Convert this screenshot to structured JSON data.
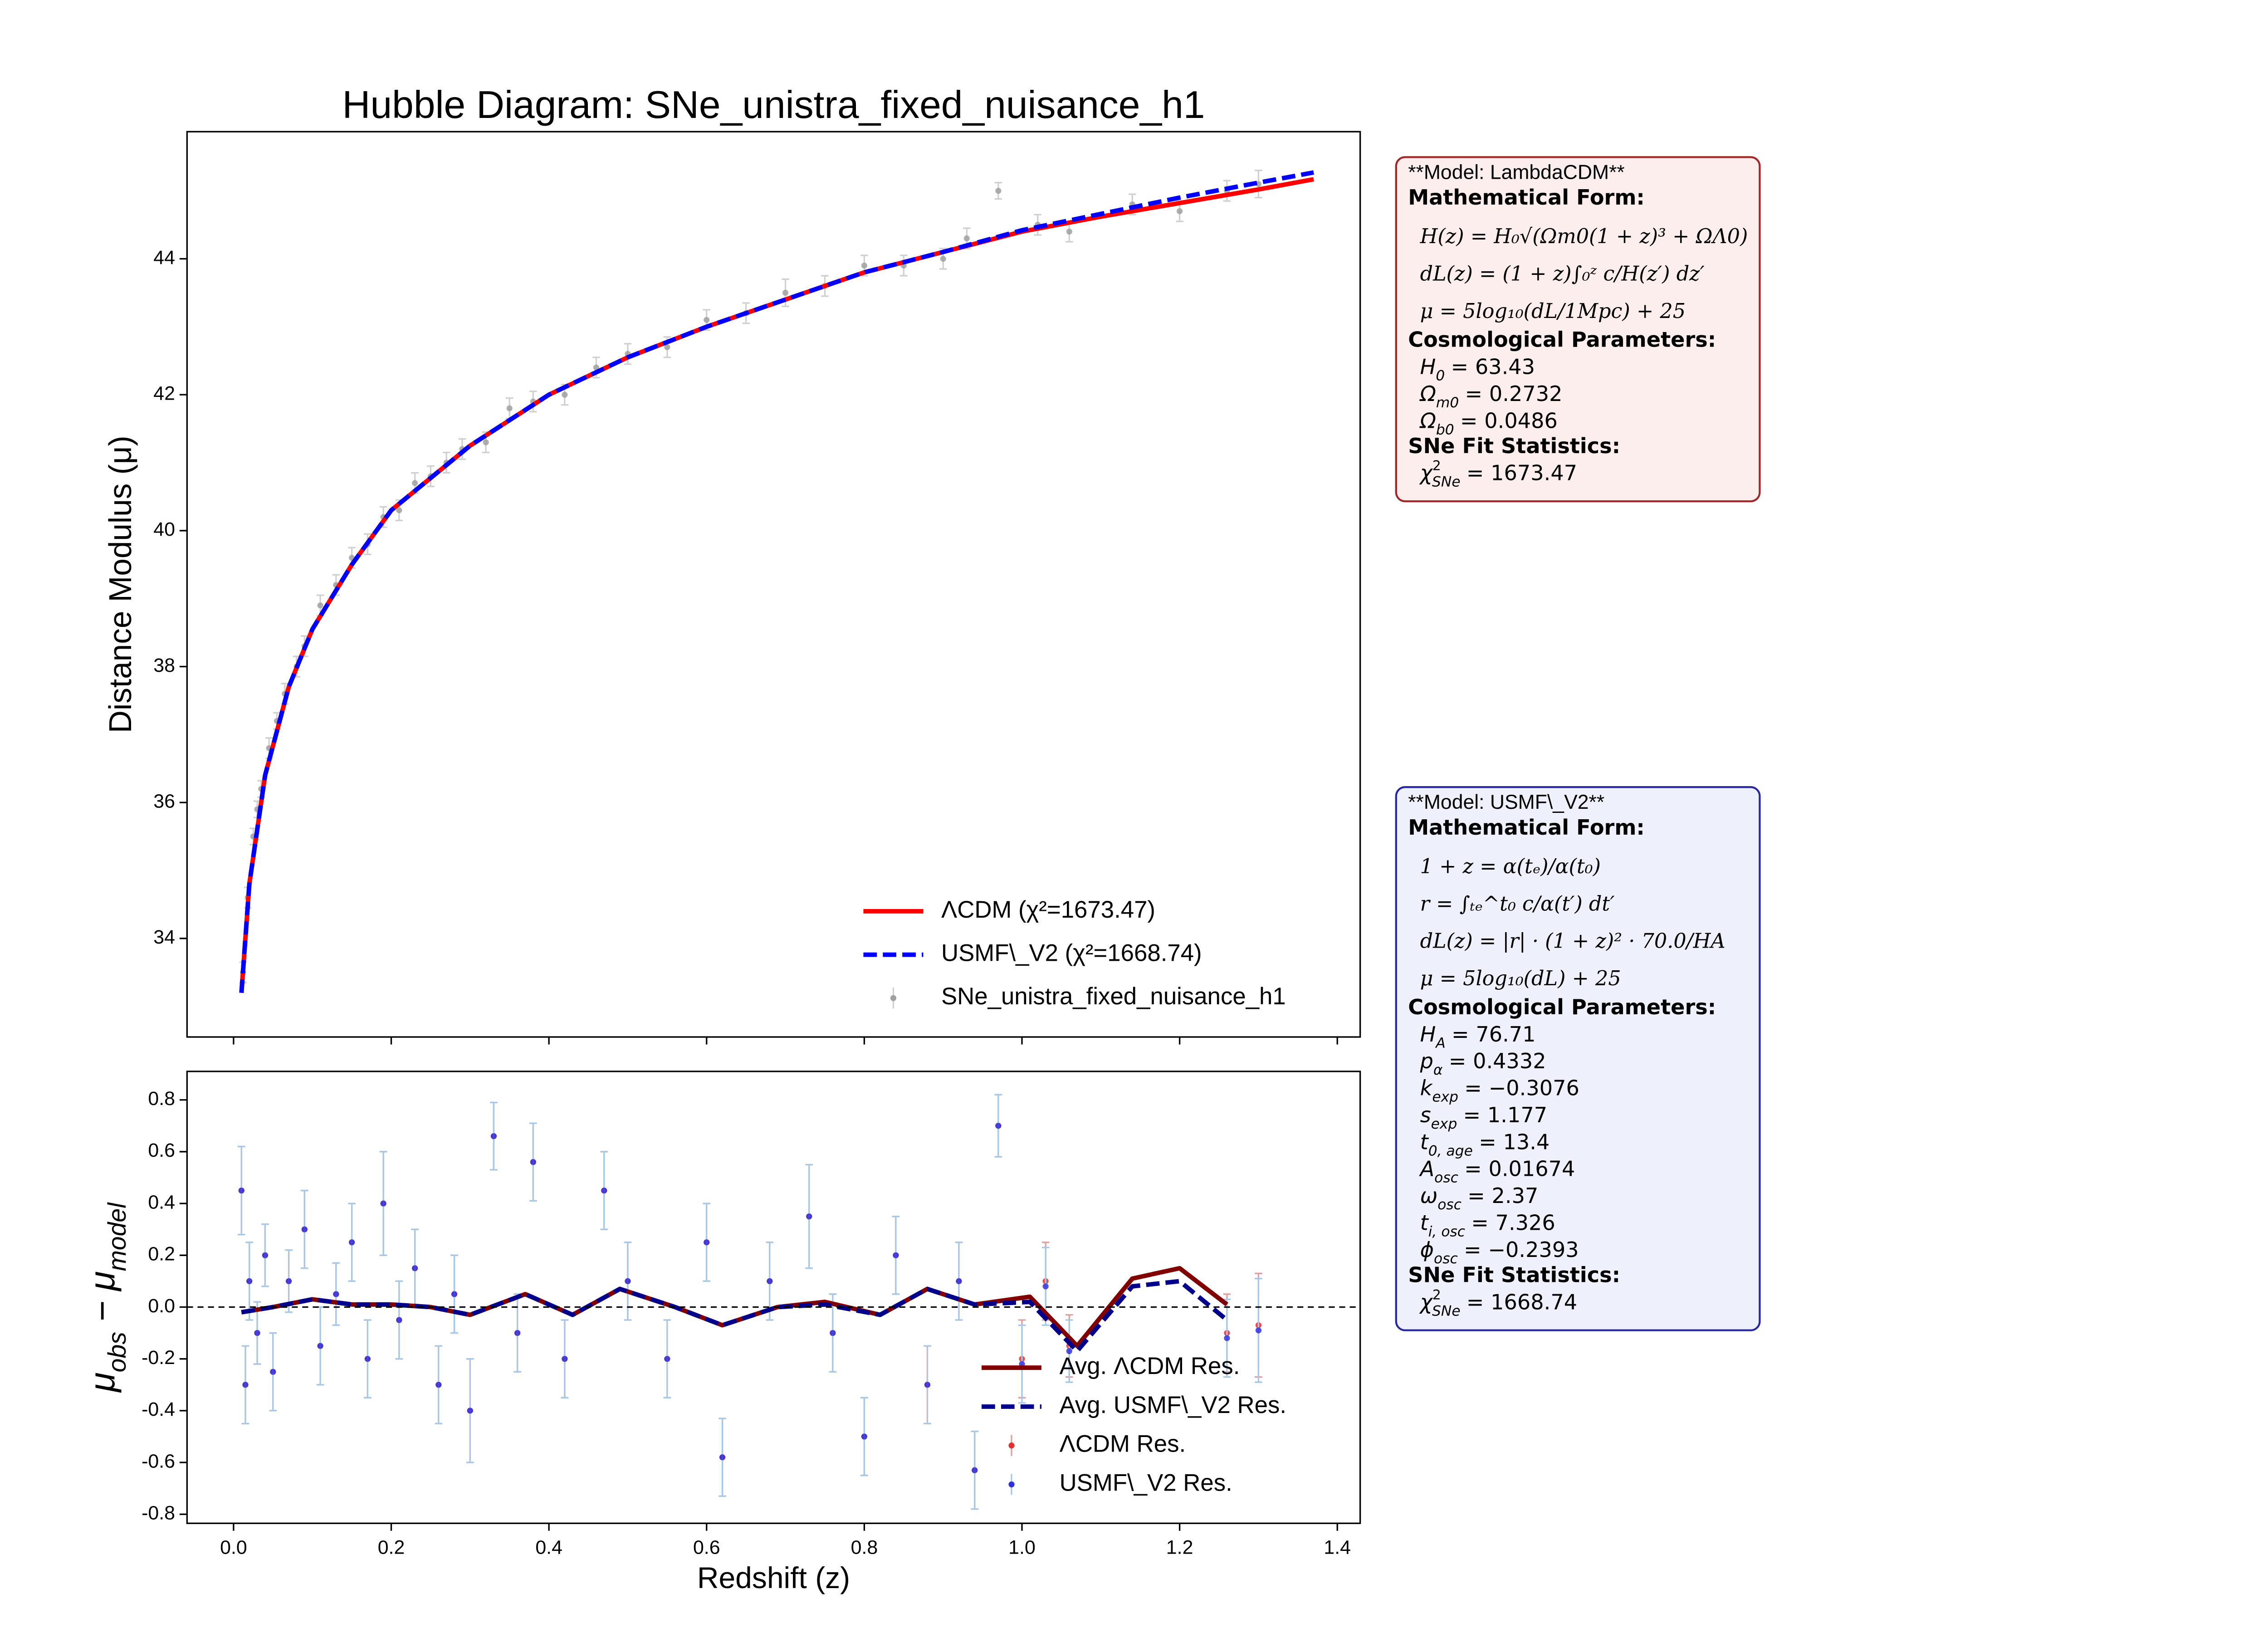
{
  "chart_data": [
    {
      "type": "line",
      "title": "Hubble Diagram: SNe_unistra_fixed_nuisance_h1",
      "ylabel": "Distance Modulus (μ)",
      "xlim": [
        -0.059,
        1.429
      ],
      "ylim": [
        32.55,
        45.87
      ],
      "xticks": [
        0,
        0.2,
        0.4,
        0.6,
        0.8,
        1,
        1.2,
        1.4
      ],
      "xtick_labels": false,
      "yticks": [
        34,
        36,
        38,
        40,
        42,
        44
      ],
      "legend": "lower right",
      "series": [
        {
          "name": "ΛCDM (χ²=1673.47)",
          "color": "#ff0000",
          "style": "solid",
          "x": [
            0.01,
            0.02,
            0.04,
            0.07,
            0.1,
            0.15,
            0.2,
            0.3,
            0.4,
            0.5,
            0.6,
            0.7,
            0.8,
            0.9,
            1.0,
            1.1,
            1.2,
            1.3,
            1.37
          ],
          "values": [
            33.2,
            34.8,
            36.4,
            37.7,
            38.55,
            39.5,
            40.3,
            41.25,
            42.0,
            42.55,
            43.0,
            43.4,
            43.8,
            44.1,
            44.4,
            44.62,
            44.82,
            45.02,
            45.17
          ]
        },
        {
          "name": "USMF\\_V2 (χ²=1668.74)",
          "color": "#0000ff",
          "style": "dashed",
          "x": [
            0.01,
            0.02,
            0.04,
            0.07,
            0.1,
            0.15,
            0.2,
            0.3,
            0.4,
            0.5,
            0.6,
            0.7,
            0.8,
            0.9,
            1.0,
            1.1,
            1.2,
            1.3,
            1.37
          ],
          "values": [
            33.2,
            34.8,
            36.4,
            37.7,
            38.55,
            39.5,
            40.3,
            41.25,
            42.0,
            42.55,
            43.0,
            43.4,
            43.8,
            44.1,
            44.42,
            44.66,
            44.9,
            45.12,
            45.27
          ]
        },
        {
          "name": "SNe_unistra_fixed_nuisance_h1",
          "color": "#a0a0a0",
          "error_color": "#d0d0d0",
          "style": "errorbar",
          "x": [
            0.012,
            0.018,
            0.025,
            0.03,
            0.035,
            0.045,
            0.055,
            0.065,
            0.08,
            0.09,
            0.11,
            0.13,
            0.15,
            0.17,
            0.19,
            0.21,
            0.23,
            0.25,
            0.27,
            0.29,
            0.32,
            0.35,
            0.38,
            0.42,
            0.46,
            0.5,
            0.55,
            0.6,
            0.65,
            0.7,
            0.75,
            0.8,
            0.85,
            0.9,
            0.93,
            0.97,
            1.02,
            1.06,
            1.14,
            1.2,
            1.26,
            1.3
          ],
          "values": [
            33.5,
            34.6,
            35.5,
            35.9,
            36.2,
            36.8,
            37.2,
            37.6,
            38.0,
            38.3,
            38.9,
            39.2,
            39.6,
            39.8,
            40.2,
            40.3,
            40.7,
            40.8,
            41.0,
            41.2,
            41.3,
            41.8,
            41.9,
            42.0,
            42.4,
            42.6,
            42.7,
            43.1,
            43.2,
            43.5,
            43.6,
            43.9,
            43.9,
            44.0,
            44.3,
            45.0,
            44.5,
            44.4,
            44.8,
            44.7,
            45.0,
            45.1
          ],
          "errors": [
            0.15,
            0.15,
            0.12,
            0.12,
            0.12,
            0.15,
            0.12,
            0.15,
            0.15,
            0.15,
            0.15,
            0.15,
            0.15,
            0.15,
            0.15,
            0.15,
            0.15,
            0.15,
            0.15,
            0.15,
            0.15,
            0.15,
            0.15,
            0.15,
            0.15,
            0.15,
            0.15,
            0.15,
            0.15,
            0.2,
            0.15,
            0.15,
            0.15,
            0.15,
            0.15,
            0.12,
            0.15,
            0.15,
            0.15,
            0.15,
            0.15,
            0.2
          ]
        }
      ]
    },
    {
      "type": "line",
      "xlabel": "Redshift (z)",
      "ylabel": [
        {
          "text": "μ",
          "sub": "obs"
        },
        {
          "text": " − μ",
          "sub": "model"
        }
      ],
      "xlim": [
        -0.059,
        1.429
      ],
      "ylim": [
        -0.835,
        0.91
      ],
      "xticks": [
        {
          "value": 0,
          "label": "0.0"
        },
        0.2,
        0.4,
        0.6,
        0.8,
        {
          "value": 1,
          "label": "1.0"
        },
        1.2,
        1.4
      ],
      "xtick_labels": true,
      "yticks": [
        -0.8,
        -0.6,
        -0.4,
        -0.2,
        {
          "value": 0,
          "label": "0.0"
        },
        0.2,
        0.4,
        0.6,
        0.8
      ],
      "reference_line": 0,
      "legend": "lower right",
      "series": [
        {
          "name": "Avg. ΛCDM Res.",
          "color": "#800000",
          "style": "solid",
          "x": [
            0.01,
            0.05,
            0.1,
            0.15,
            0.2,
            0.25,
            0.3,
            0.37,
            0.43,
            0.49,
            0.56,
            0.62,
            0.69,
            0.75,
            0.82,
            0.88,
            0.94,
            1.01,
            1.07,
            1.14,
            1.2,
            1.26
          ],
          "values": [
            -0.02,
            0.0,
            0.03,
            0.01,
            0.01,
            0.0,
            -0.03,
            0.05,
            -0.03,
            0.07,
            0.0,
            -0.07,
            0.0,
            0.02,
            -0.03,
            0.07,
            0.01,
            0.04,
            -0.15,
            0.11,
            0.15,
            0.01
          ]
        },
        {
          "name": "Avg. USMF\\_V2 Res.",
          "color": "#00008b",
          "style": "dashed",
          "x": [
            0.01,
            0.05,
            0.1,
            0.15,
            0.2,
            0.25,
            0.3,
            0.37,
            0.43,
            0.49,
            0.56,
            0.62,
            0.69,
            0.75,
            0.82,
            0.88,
            0.94,
            1.01,
            1.07,
            1.14,
            1.2,
            1.26
          ],
          "values": [
            -0.02,
            0.0,
            0.03,
            0.01,
            0.01,
            0.0,
            -0.03,
            0.05,
            -0.03,
            0.07,
            0.0,
            -0.07,
            0.0,
            0.01,
            -0.03,
            0.07,
            0.01,
            0.02,
            -0.17,
            0.08,
            0.1,
            -0.05
          ]
        },
        {
          "name": "ΛCDM Res.",
          "color": "#e03030",
          "error_color": "#e0a0a0",
          "style": "errorbar",
          "x": [
            0.01,
            0.015,
            0.02,
            0.03,
            0.04,
            0.05,
            0.07,
            0.09,
            0.11,
            0.13,
            0.15,
            0.17,
            0.19,
            0.21,
            0.23,
            0.26,
            0.28,
            0.3,
            0.33,
            0.36,
            0.38,
            0.42,
            0.47,
            0.5,
            0.55,
            0.6,
            0.62,
            0.68,
            0.73,
            0.76,
            0.8,
            0.84,
            0.88,
            0.92,
            0.94,
            0.97,
            1.0,
            1.03,
            1.06,
            1.26,
            1.3
          ],
          "values": [
            0.45,
            -0.3,
            0.1,
            -0.1,
            0.2,
            -0.25,
            0.1,
            0.3,
            -0.15,
            0.05,
            0.25,
            -0.2,
            0.4,
            -0.05,
            0.15,
            -0.3,
            0.05,
            -0.4,
            0.66,
            -0.1,
            0.56,
            -0.2,
            0.45,
            0.1,
            -0.2,
            0.25,
            -0.58,
            0.1,
            0.35,
            -0.1,
            -0.5,
            0.2,
            -0.3,
            0.1,
            -0.63,
            0.7,
            -0.2,
            0.1,
            -0.15,
            -0.1,
            -0.07
          ],
          "errors": [
            0.17,
            0.15,
            0.15,
            0.12,
            0.12,
            0.15,
            0.12,
            0.15,
            0.15,
            0.12,
            0.15,
            0.15,
            0.2,
            0.15,
            0.15,
            0.15,
            0.15,
            0.2,
            0.13,
            0.15,
            0.15,
            0.15,
            0.15,
            0.15,
            0.15,
            0.15,
            0.15,
            0.15,
            0.2,
            0.15,
            0.15,
            0.15,
            0.15,
            0.15,
            0.15,
            0.12,
            0.15,
            0.15,
            0.12,
            0.15,
            0.2
          ]
        },
        {
          "name": "USMF\\_V2 Res.",
          "color": "#3030e0",
          "error_color": "#a8c8e8",
          "style": "errorbar",
          "x": [
            0.01,
            0.015,
            0.02,
            0.03,
            0.04,
            0.05,
            0.07,
            0.09,
            0.11,
            0.13,
            0.15,
            0.17,
            0.19,
            0.21,
            0.23,
            0.26,
            0.28,
            0.3,
            0.33,
            0.36,
            0.38,
            0.42,
            0.47,
            0.5,
            0.55,
            0.6,
            0.62,
            0.68,
            0.73,
            0.76,
            0.8,
            0.84,
            0.88,
            0.92,
            0.94,
            0.97,
            1.0,
            1.03,
            1.06,
            1.26,
            1.3
          ],
          "values": [
            0.45,
            -0.3,
            0.1,
            -0.1,
            0.2,
            -0.25,
            0.1,
            0.3,
            -0.15,
            0.05,
            0.25,
            -0.2,
            0.4,
            -0.05,
            0.15,
            -0.3,
            0.05,
            -0.4,
            0.66,
            -0.1,
            0.56,
            -0.2,
            0.45,
            0.1,
            -0.2,
            0.25,
            -0.58,
            0.1,
            0.35,
            -0.1,
            -0.5,
            0.2,
            -0.3,
            0.1,
            -0.63,
            0.7,
            -0.22,
            0.08,
            -0.17,
            -0.12,
            -0.09
          ],
          "errors": [
            0.17,
            0.15,
            0.15,
            0.12,
            0.12,
            0.15,
            0.12,
            0.15,
            0.15,
            0.12,
            0.15,
            0.15,
            0.2,
            0.15,
            0.15,
            0.15,
            0.15,
            0.2,
            0.13,
            0.15,
            0.15,
            0.15,
            0.15,
            0.15,
            0.15,
            0.15,
            0.15,
            0.15,
            0.2,
            0.15,
            0.15,
            0.15,
            0.15,
            0.15,
            0.15,
            0.12,
            0.15,
            0.15,
            0.12,
            0.15,
            0.2
          ]
        }
      ]
    }
  ],
  "model_boxes": [
    {
      "title": "**Model: LambdaCDM**",
      "fill": "#fdeeee",
      "border": "#a02828",
      "sections": [
        {
          "heading": "Mathematical Form:",
          "formulas": [
            "H(z) = H₀√(Ωm0(1 + z)³ + ΩΛ0)",
            "dL(z) = (1 + z)∫₀ᶻ c/H(z′) dz′",
            "μ = 5log₁₀(dL/1Mpc) + 25"
          ]
        },
        {
          "heading": "Cosmological Parameters:",
          "params": [
            {
              "symbol": "H",
              "sub": "0",
              "value": "= 63.43"
            },
            {
              "symbol": "Ω",
              "sub": "m0",
              "value": "= 0.2732"
            },
            {
              "symbol": "Ω",
              "sub": "b0",
              "value": "= 0.0486"
            }
          ]
        },
        {
          "heading": "SNe Fit Statistics:",
          "params": [
            {
              "symbol": "χ",
              "sup": "2",
              "sub": "SNe",
              "value": "= 1673.47"
            }
          ]
        }
      ]
    },
    {
      "title": "**Model: USMF\\_V2**",
      "fill": "#eef0fc",
      "border": "#2828a0",
      "sections": [
        {
          "heading": "Mathematical Form:",
          "formulas": [
            "1 + z = α(tₑ)/α(t₀)",
            "r = ∫ₜₑ^t₀ c/α(t′) dt′",
            "dL(z) = |r| · (1 + z)² · 70.0/HA",
            "μ = 5log₁₀(dL) + 25"
          ]
        },
        {
          "heading": "Cosmological Parameters:",
          "params": [
            {
              "symbol": "H",
              "sub": "A",
              "value": "= 76.71"
            },
            {
              "symbol": "p",
              "sub": "α",
              "value": "= 0.4332"
            },
            {
              "symbol": "k",
              "sub": "exp",
              "value": "= −0.3076"
            },
            {
              "symbol": "s",
              "sub": "exp",
              "value": "= 1.177"
            },
            {
              "symbol": "t",
              "sub": "0, age",
              "value": "= 13.4"
            },
            {
              "symbol": "A",
              "sub": "osc",
              "value": "= 0.01674"
            },
            {
              "symbol": "ω",
              "sub": "osc",
              "value": "= 2.37"
            },
            {
              "symbol": "t",
              "sub": "i, osc",
              "value": "= 7.326"
            },
            {
              "symbol": "ϕ",
              "sub": "osc",
              "value": "= −0.2393"
            }
          ]
        },
        {
          "heading": "SNe Fit Statistics:",
          "params": [
            {
              "symbol": "χ",
              "sup": "2",
              "sub": "SNe",
              "value": "= 1668.74"
            }
          ]
        }
      ]
    }
  ]
}
